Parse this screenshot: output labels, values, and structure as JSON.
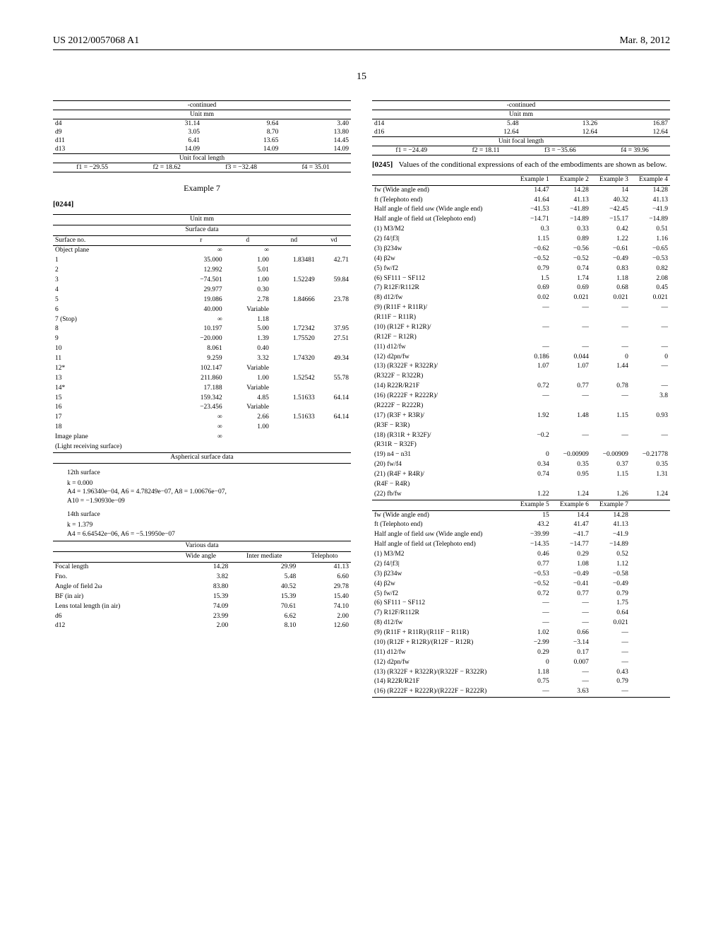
{
  "header": {
    "doc_id": "US 2012/0057068 A1",
    "date": "Mar. 8, 2012"
  },
  "page_number": "15",
  "left": {
    "continued": "-continued",
    "unit": "Unit mm",
    "t1_rows": [
      [
        "d4",
        "31.14",
        "9.64",
        "3.40"
      ],
      [
        "d9",
        "3.05",
        "8.70",
        "13.80"
      ],
      [
        "d11",
        "6.41",
        "13.65",
        "14.45"
      ],
      [
        "d13",
        "14.09",
        "14.09",
        "14.09"
      ]
    ],
    "ufl_label": "Unit focal length",
    "ufl_row": [
      "f1 = −29.55",
      "f2 = 18.62",
      "f3 = −32.48",
      "f4 = 35.01"
    ],
    "example_label": "Example 7",
    "para": "[0244]",
    "surface_header": [
      "Surface no.",
      "r",
      "d",
      "nd",
      "νd"
    ],
    "surface_label": "Surface data",
    "surface_rows": [
      [
        "Object plane",
        "∞",
        "∞",
        "",
        ""
      ],
      [
        "1",
        "35.000",
        "1.00",
        "1.83481",
        "42.71"
      ],
      [
        "2",
        "12.992",
        "5.01",
        "",
        ""
      ],
      [
        "3",
        "−74.501",
        "1.00",
        "1.52249",
        "59.84"
      ],
      [
        "4",
        "29.977",
        "0.30",
        "",
        ""
      ],
      [
        "5",
        "19.086",
        "2.78",
        "1.84666",
        "23.78"
      ],
      [
        "6",
        "40.000",
        "Variable",
        "",
        ""
      ],
      [
        "7 (Stop)",
        "∞",
        "1.18",
        "",
        ""
      ],
      [
        "8",
        "10.197",
        "5.00",
        "1.72342",
        "37.95"
      ],
      [
        "9",
        "−20.000",
        "1.39",
        "1.75520",
        "27.51"
      ],
      [
        "10",
        "8.061",
        "0.40",
        "",
        ""
      ],
      [
        "11",
        "9.259",
        "3.32",
        "1.74320",
        "49.34"
      ],
      [
        "12*",
        "102.147",
        "Variable",
        "",
        ""
      ],
      [
        "13",
        "211.860",
        "1.00",
        "1.52542",
        "55.78"
      ],
      [
        "14*",
        "17.188",
        "Variable",
        "",
        ""
      ],
      [
        "15",
        "159.342",
        "4.85",
        "1.51633",
        "64.14"
      ],
      [
        "16",
        "−23.456",
        "Variable",
        "",
        ""
      ],
      [
        "17",
        "∞",
        "2.66",
        "1.51633",
        "64.14"
      ],
      [
        "18",
        "∞",
        "1.00",
        "",
        ""
      ],
      [
        "Image plane",
        "∞",
        "",
        "",
        ""
      ],
      [
        "(Light receiving surface)",
        "",
        "",
        "",
        ""
      ]
    ],
    "asph_label": "Aspherical surface data",
    "asph12_header": "12th surface",
    "asph12_lines": [
      "k = 0.000",
      "A4 = 1.96340e−04, A6 = 4.78249e−07, A8 = 1.00676e−07,",
      "A10 = −1.90930e−09"
    ],
    "asph14_header": "14th surface",
    "asph14_lines": [
      "k = 1.379",
      "A4 = 6.64542e−06, A6 = −5.19950e−07"
    ],
    "various_label": "Various data",
    "various_header": [
      "",
      "Wide angle",
      "Inter mediate",
      "Telephoto"
    ],
    "various_rows": [
      [
        "Focal length",
        "14.28",
        "29.99",
        "41.13"
      ],
      [
        "Fno.",
        "3.82",
        "5.48",
        "6.60"
      ],
      [
        "Angle of field 2ω",
        "83.80",
        "40.52",
        "29.78"
      ],
      [
        "BF (in air)",
        "15.39",
        "15.39",
        "15.40"
      ],
      [
        "Lens total length (in air)",
        "74.09",
        "70.61",
        "74.10"
      ],
      [
        "d6",
        "23.99",
        "6.62",
        "2.00"
      ],
      [
        "d12",
        "2.00",
        "8.10",
        "12.60"
      ]
    ]
  },
  "right": {
    "continued": "-continued",
    "unit": "Unit mm",
    "d_rows": [
      [
        "d14",
        "5.48",
        "13.26",
        "16.87"
      ],
      [
        "d16",
        "12.64",
        "12.64",
        "12.64"
      ]
    ],
    "ufl_label": "Unit focal length",
    "ufl_row": [
      "f1 = −24.49",
      "f2 = 18.11",
      "f3 = −35.66",
      "f4 = 39.96"
    ],
    "para_num": "[0245]",
    "para_text": "Values of the conditional expressions of each of the embodiments are shown as below.",
    "cond_header1": [
      "",
      "Example 1",
      "Example 2",
      "Example 3",
      "Example 4"
    ],
    "cond_rows1": [
      [
        "fw (Wide angle end)",
        "14.47",
        "14.28",
        "14",
        "14.28"
      ],
      [
        "ft (Telephoto end)",
        "41.64",
        "41.13",
        "40.32",
        "41.13"
      ],
      [
        "Half angle of field ωw (Wide angle end)",
        "−41.53",
        "−41.89",
        "−42.45",
        "−41.9"
      ],
      [
        "Half angle of field ωt (Telephoto end)",
        "−14.71",
        "−14.89",
        "−15.17",
        "−14.89"
      ],
      [
        "(1) M3/M2",
        "0.3",
        "0.33",
        "0.42",
        "0.51"
      ],
      [
        "(2) f4/|f3|",
        "1.15",
        "0.89",
        "1.22",
        "1.16"
      ],
      [
        "(3) β234w",
        "−0.62",
        "−0.56",
        "−0.61",
        "−0.65"
      ],
      [
        "(4) β2w",
        "−0.52",
        "−0.52",
        "−0.49",
        "−0.53"
      ],
      [
        "(5) fw/f2",
        "0.79",
        "0.74",
        "0.83",
        "0.82"
      ],
      [
        "(6) SF111 − SF112",
        "1.5",
        "1.74",
        "1.18",
        "2.08"
      ],
      [
        "(7) R12F/R112R",
        "0.69",
        "0.69",
        "0.68",
        "0.45"
      ],
      [
        "(8) d12/fw",
        "0.02",
        "0.021",
        "0.021",
        "0.021"
      ],
      [
        "(9) (R11F + R11R)/",
        "—",
        "—",
        "—",
        "—"
      ],
      [
        "(R11F − R11R)",
        "",
        "",
        "",
        ""
      ],
      [
        "(10) (R12F + R12R)/",
        "—",
        "—",
        "—",
        "—"
      ],
      [
        "(R12F − R12R)",
        "",
        "",
        "",
        ""
      ],
      [
        "(11) d12/fw",
        "—",
        "—",
        "—",
        "—"
      ],
      [
        "(12) d2pn/fw",
        "0.186",
        "0.044",
        "0",
        "0"
      ],
      [
        "(13) (R322F + R322R)/",
        "1.07",
        "1.07",
        "1.44",
        "—"
      ],
      [
        "(R322F − R322R)",
        "",
        "",
        "",
        ""
      ],
      [
        "(14) R22R/R21F",
        "0.72",
        "0.77",
        "0.78",
        "—"
      ],
      [
        "(16) (R222F + R222R)/",
        "—",
        "—",
        "—",
        "3.8"
      ],
      [
        "(R222F − R222R)",
        "",
        "",
        "",
        ""
      ],
      [
        "(17) (R3F + R3R)/",
        "1.92",
        "1.48",
        "1.15",
        "0.93"
      ],
      [
        "(R3F − R3R)",
        "",
        "",
        "",
        ""
      ],
      [
        "(18) (R31R + R32F)/",
        "−0.2",
        "—",
        "—",
        "—"
      ],
      [
        "(R31R − R32F)",
        "",
        "",
        "",
        ""
      ],
      [
        "(19) n4 − n31",
        "0",
        "−0.00909",
        "−0.00909",
        "−0.21778"
      ],
      [
        "(20) fw/f4",
        "0.34",
        "0.35",
        "0.37",
        "0.35"
      ],
      [
        "(21) (R4F + R4R)/",
        "0.74",
        "0.95",
        "1.15",
        "1.31"
      ],
      [
        "(R4F − R4R)",
        "",
        "",
        "",
        ""
      ],
      [
        "(22) fb/fw",
        "1.22",
        "1.24",
        "1.26",
        "1.24"
      ]
    ],
    "cond_header2": [
      "",
      "Example 5",
      "Example 6",
      "Example 7"
    ],
    "cond_rows2": [
      [
        "fw (Wide angle end)",
        "15",
        "14.4",
        "14.28"
      ],
      [
        "ft (Telephoto end)",
        "43.2",
        "41.47",
        "41.13"
      ],
      [
        "Half angle of field ωw (Wide angle end)",
        "−39.99",
        "−41.7",
        "−41.9"
      ],
      [
        "Half angle of field ωt (Telephoto end)",
        "−14.35",
        "−14.77",
        "−14.89"
      ],
      [
        "(1) M3/M2",
        "0.46",
        "0.29",
        "0.52"
      ],
      [
        "(2) f4/|f3|",
        "0.77",
        "1.08",
        "1.12"
      ],
      [
        "(3) β234w",
        "−0.53",
        "−0.49",
        "−0.58"
      ],
      [
        "(4) β2w",
        "−0.52",
        "−0.41",
        "−0.49"
      ],
      [
        "(5) fw/f2",
        "0.72",
        "0.77",
        "0.79"
      ],
      [
        "(6) SF111 − SF112",
        "—",
        "—",
        "1.75"
      ],
      [
        "(7) R12F/R112R",
        "—",
        "—",
        "0.64"
      ],
      [
        "(8) d12/fw",
        "—",
        "—",
        "0.021"
      ],
      [
        "(9) (R11F + R11R)/(R11F − R11R)",
        "1.02",
        "0.66",
        "—"
      ],
      [
        "(10) (R12F + R12R)/(R12F − R12R)",
        "−2.99",
        "−3.14",
        "—"
      ],
      [
        "(11) d12/fw",
        "0.29",
        "0.17",
        "—"
      ],
      [
        "(12) d2pn/fw",
        "0",
        "0.007",
        "—"
      ],
      [
        "(13) (R322F + R322R)/(R322F − R322R)",
        "1.18",
        "—",
        "0.43"
      ],
      [
        "(14) R22R/R21F",
        "0.75",
        "—",
        "0.79"
      ],
      [
        "(16) (R222F + R222R)/(R222F − R222R)",
        "—",
        "3.63",
        "—"
      ]
    ]
  }
}
